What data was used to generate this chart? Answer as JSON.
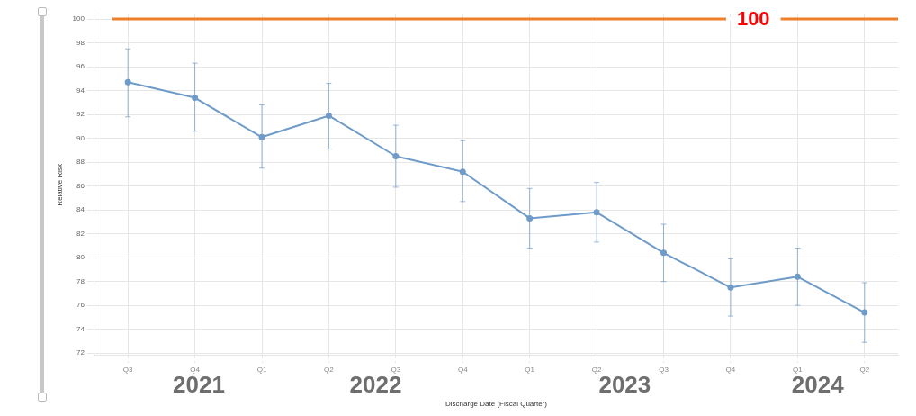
{
  "chart_data": {
    "type": "line",
    "xlabel": "Discharge Date (Fiscal Quarter)",
    "ylabel": "Relative Risk",
    "categories": [
      "Q3",
      "Q4",
      "Q1",
      "Q2",
      "Q3",
      "Q4",
      "Q1",
      "Q2",
      "Q3",
      "Q4",
      "Q1",
      "Q2"
    ],
    "series": [
      {
        "color": "#6f9bc9",
        "values": [
          94.7,
          93.4,
          90.1,
          91.9,
          88.5,
          87.2,
          83.3,
          83.8,
          80.4,
          77.5,
          78.4,
          75.4
        ],
        "errors": [
          [
            91.8,
            97.5
          ],
          [
            90.6,
            96.3
          ],
          [
            87.5,
            92.8
          ],
          [
            89.1,
            94.6
          ],
          [
            85.9,
            91.1
          ],
          [
            84.7,
            89.8
          ],
          [
            80.8,
            85.8
          ],
          [
            81.3,
            86.3
          ],
          [
            78.0,
            82.8
          ],
          [
            75.1,
            79.9
          ],
          [
            76.0,
            80.8
          ],
          [
            72.9,
            77.9
          ]
        ]
      }
    ],
    "ylim": [
      71.8,
      100.4
    ],
    "yticks": [
      72,
      74,
      76,
      78,
      80,
      82,
      84,
      86,
      88,
      90,
      92,
      94,
      96,
      98,
      100
    ],
    "ref_lines": [
      {
        "axis": "y",
        "value": 100,
        "label": "100",
        "color": "#f07f2a"
      }
    ],
    "annotations": [
      "2021",
      "2022",
      "2023",
      "2024"
    ],
    "grid": true,
    "marker": "circle",
    "line_style": "solid",
    "legend": false
  }
}
